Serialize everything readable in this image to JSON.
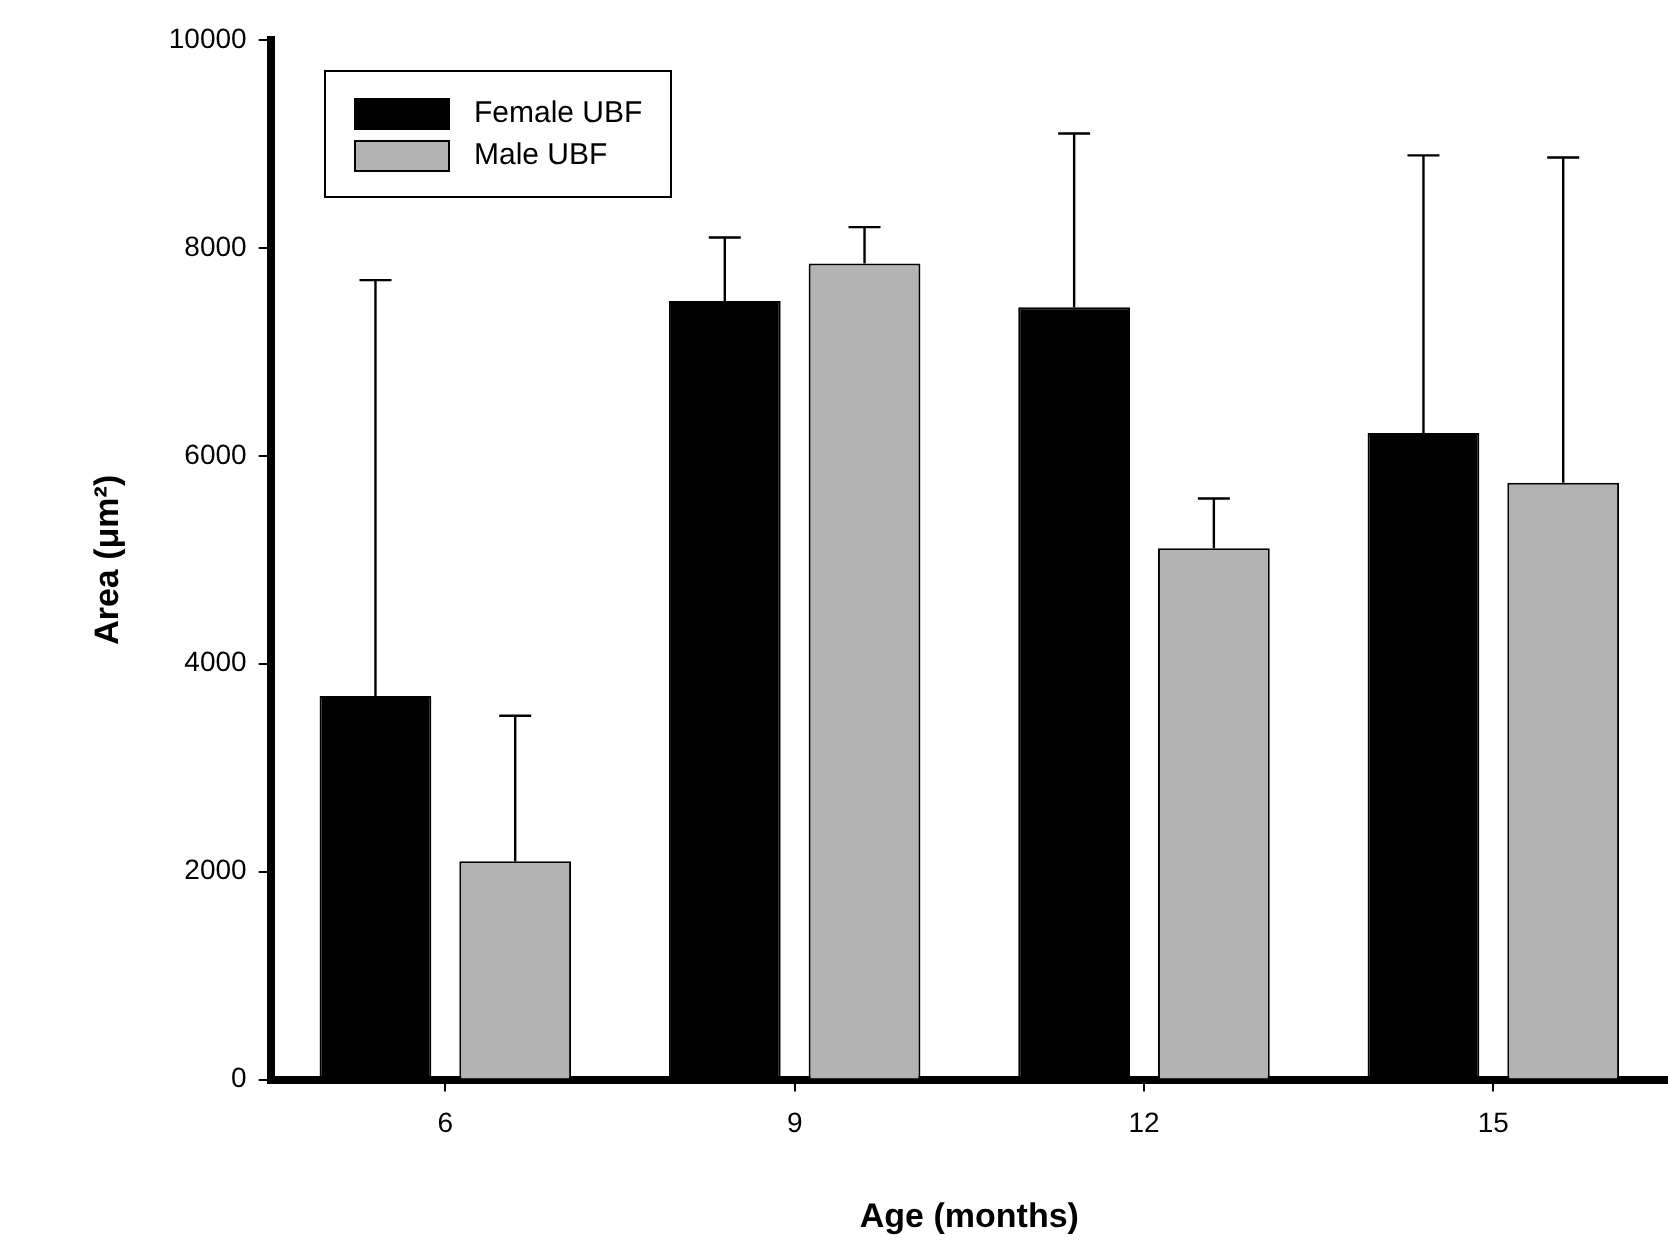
{
  "chart_data": {
    "type": "bar",
    "xlabel": "Age (months)",
    "ylabel": "Area (μm²)",
    "categories": [
      "6",
      "9",
      "12",
      "15"
    ],
    "series": [
      {
        "name": "Female UBF",
        "color": "#000000",
        "values": [
          3690,
          7490,
          7430,
          6220
        ],
        "errors": [
          [
            3690,
            7690
          ],
          [
            7490,
            8100
          ],
          [
            7430,
            9100
          ],
          [
            6220,
            8890
          ]
        ]
      },
      {
        "name": "Male UBF",
        "color": "#b3b3b3",
        "values": [
          2100,
          7850,
          5110,
          5740
        ],
        "errors": [
          [
            2100,
            3500
          ],
          [
            7850,
            8200
          ],
          [
            5110,
            5590
          ],
          [
            5740,
            8870
          ]
        ]
      }
    ],
    "ylim": [
      0,
      10000
    ],
    "yticks": [
      0,
      2000,
      4000,
      6000,
      8000,
      10000
    ],
    "grid": false,
    "legend": "top left"
  }
}
